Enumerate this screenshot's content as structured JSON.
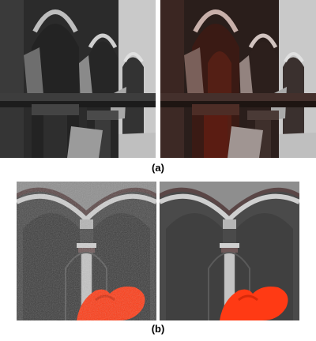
{
  "figure": {
    "caption_a": "(a)",
    "caption_b": "(b)"
  },
  "panels": {
    "a_left": {
      "style": "grayscale",
      "tint": "#000000"
    },
    "a_right": {
      "style": "red-tinted",
      "tint": "#7a2a1c"
    },
    "b_left": {
      "style": "noisy"
    },
    "b_right": {
      "style": "smooth"
    }
  },
  "colors": {
    "stone_dark": "#2e2e2e",
    "stone_light": "#d8d8d8",
    "curtain_red": "#ff3a14",
    "sky": "#cfcfcf"
  }
}
